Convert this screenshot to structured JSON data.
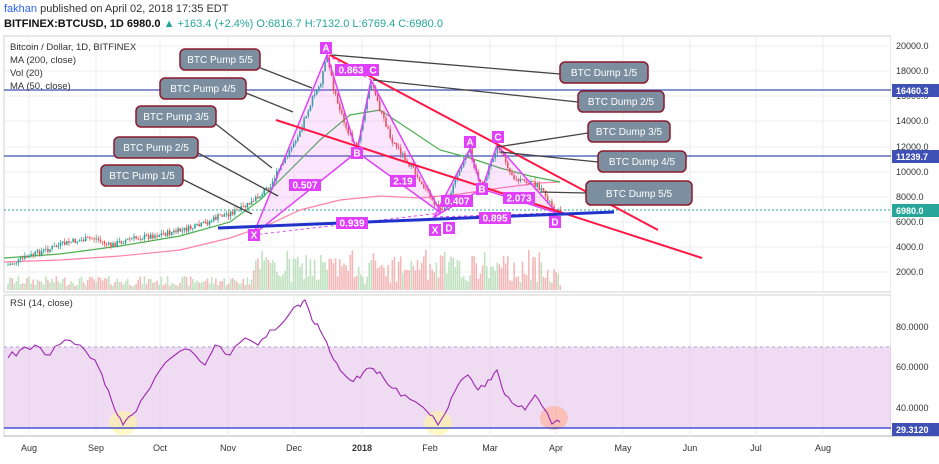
{
  "header": {
    "author": "fakhan",
    "published_text": "published on April 02, 2018 17:35 EDT",
    "symbol": "BITFINEX:BTCUSD, 1D",
    "last": "6980.0",
    "change": "▲ +163.4 (+2.4%)",
    "ohlc": "O:6816.7 H:7132.0 L:6769.4 C:6980.0"
  },
  "legend": {
    "title": "Bitcoin / Dollar, 1D, BITFINEX",
    "ma200": "MA (200, close)",
    "vol": "Vol (20)",
    "ma50": "MA (50, close)",
    "rsi": "RSI (14, close)"
  },
  "price_axis": [
    "20000.0",
    "18000.0",
    "16000.0",
    "14000.0",
    "12000.0",
    "10000.0",
    "8000.0",
    "6000.0",
    "4000.0",
    "2000.0"
  ],
  "price_tags": {
    "level1": "16460.3",
    "level2": "11239.7",
    "last": "6980.0"
  },
  "rsi_axis": [
    "80.0000",
    "60.0000",
    "40.0000"
  ],
  "rsi_tag": "29.3120",
  "time_axis": [
    "Aug",
    "Sep",
    "Oct",
    "Nov",
    "Dec",
    "2018",
    "Feb",
    "Mar",
    "Apr",
    "May",
    "Jun",
    "Jul",
    "Aug"
  ],
  "callouts": {
    "pump5": "BTC Pump 5/5",
    "pump4": "BTC Pump 4/5",
    "pump3": "BTC Pump 3/5",
    "pump2": "BTC Pump 2/5",
    "pump1": "BTC Pump 1/5",
    "dump1": "BTC Dump 1/5",
    "dump2": "BTC Dump 2/5",
    "dump3": "BTC Dump 3/5",
    "dump4": "BTC Dump 4/5",
    "dump5": "BTC Dump 5/5"
  },
  "pattern_labels": {
    "A1": "A",
    "C1": "C",
    "B1": "B",
    "X1": "X",
    "D1": "D",
    "A2": "A",
    "C2": "C",
    "B2": "B",
    "X2": "X",
    "D2": "D",
    "r0863": "0.863",
    "r0507": "0.507",
    "r219": "2.19",
    "r0939": "0.939",
    "r0407": "0.407",
    "r2073": "2.073",
    "r0895": "0.895"
  },
  "colors": {
    "up": "#26a69a",
    "down": "#ef5350",
    "pattern": "#e040fb",
    "trend": "#ff1744",
    "support": "#2233cc",
    "hline": "#3f51b5",
    "rsi": "#9c27b0",
    "callout": "#7b8fa1"
  }
}
